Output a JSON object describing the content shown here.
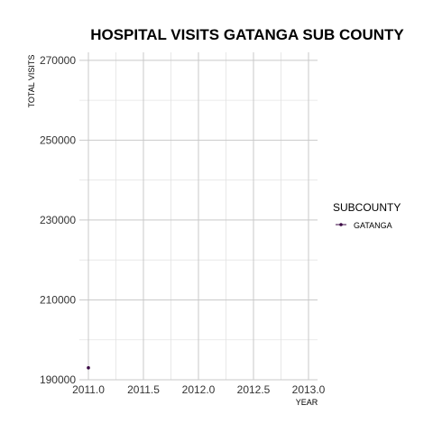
{
  "chart_data": {
    "type": "line",
    "title": "HOSPITAL VISITS GATANGA SUB COUNTY",
    "xlabel": "YEAR",
    "ylabel": "TOTAL VISITS",
    "xlim": [
      2011.0,
      2013.0
    ],
    "ylim": [
      190000,
      272000
    ],
    "x_ticks": [
      2011.0,
      2011.5,
      2012.0,
      2012.5,
      2013.0
    ],
    "x_tick_labels": [
      "2011.0",
      "2011.5",
      "2012.0",
      "2012.5",
      "2013.0"
    ],
    "y_ticks": [
      190000,
      210000,
      230000,
      250000,
      270000
    ],
    "y_tick_labels": [
      "190000",
      "210000",
      "230000",
      "250000",
      "270000"
    ],
    "grid": true,
    "legend": {
      "title": "SUBCOUNTY",
      "position": "right"
    },
    "series": [
      {
        "name": "GATANGA",
        "color": "#3b0a45",
        "x": [
          2011.0
        ],
        "y": [
          193000
        ]
      }
    ]
  }
}
